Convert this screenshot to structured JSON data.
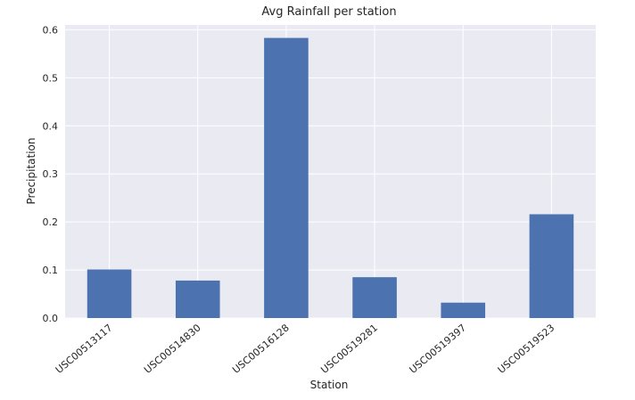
{
  "chart_data": {
    "type": "bar",
    "title": "Avg Rainfall per station",
    "xlabel": "Station",
    "ylabel": "Precipitation",
    "categories": [
      "USC00513117",
      "USC00514830",
      "USC00516128",
      "USC00519281",
      "USC00519397",
      "USC00519523"
    ],
    "values": [
      0.101,
      0.078,
      0.583,
      0.085,
      0.032,
      0.216
    ],
    "ylim": [
      0,
      0.61
    ],
    "yticks": [
      "0.0",
      "0.1",
      "0.2",
      "0.3",
      "0.4",
      "0.5",
      "0.6"
    ],
    "grid": true,
    "legend": "none",
    "colors": {
      "bar": "#4C72B0",
      "background": "#EAEAF2",
      "grid": "#FFFFFF"
    }
  }
}
